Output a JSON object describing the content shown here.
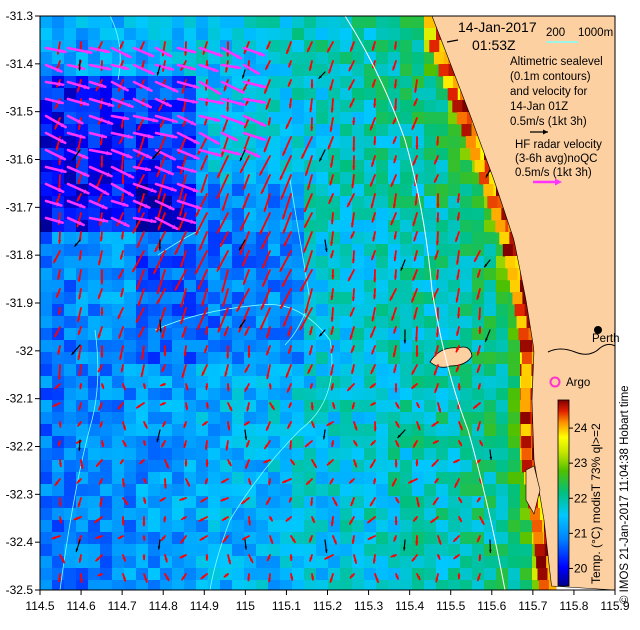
{
  "map": {
    "timestamp_date": "14-Jan-2017",
    "timestamp_time": "01:53Z",
    "scale_label": "200",
    "scale_label_2": "1000m",
    "legend_altimetry_lines": [
      "Altimetric sealevel",
      "(0.1m contours)",
      "and velocity for",
      "14-Jan 01Z",
      "0.5m/s (1kt 3h)"
    ],
    "legend_radar_lines": [
      "HF radar velocity",
      "(3-6h avg)noQC",
      "0.5m/s (1kt 3h)"
    ],
    "place_perth": "Perth",
    "place_argo": "Argo",
    "colorbar_title": "Temp. (°C) modisT 73% ql>=2",
    "credit": "© IMOS 21-Jan-2017 11:04:38 Hobart time",
    "colors": {
      "land": "#fdd0a2",
      "radar_arrow": "#ff33ff",
      "model_arrow": "#ff0000",
      "altimetry_arrow": "#000000",
      "contour": "#7fffff",
      "argo": "#ff33cc"
    }
  },
  "chart_data": {
    "type": "heatmap",
    "xlim": [
      114.5,
      115.9
    ],
    "ylim": [
      -32.5,
      -31.3
    ],
    "x_ticks": [
      "114.5",
      "114.6",
      "114.7",
      "114.8",
      "114.9",
      "115",
      "115.1",
      "115.2",
      "115.3",
      "115.4",
      "115.5",
      "115.6",
      "115.7",
      "115.8",
      "115.9"
    ],
    "y_ticks": [
      "-31.3",
      "-31.4",
      "-31.5",
      "-31.6",
      "-31.7",
      "-31.8",
      "-31.9",
      "-32",
      "-32.1",
      "-32.2",
      "-32.3",
      "-32.4",
      "-32.5"
    ],
    "colorbar_ticks": [
      "20",
      "21",
      "22",
      "23",
      "24"
    ],
    "colorbar_range": [
      19.5,
      24.8
    ],
    "series": [
      {
        "name": "sea surface temperature",
        "unit": "°C"
      },
      {
        "name": "HF radar velocity"
      },
      {
        "name": "Altimetric velocity"
      }
    ],
    "points": [
      {
        "name": "Perth",
        "lon": 115.86,
        "lat": -31.95
      },
      {
        "name": "Argo",
        "lon": 115.75,
        "lat": -32.08
      }
    ]
  }
}
